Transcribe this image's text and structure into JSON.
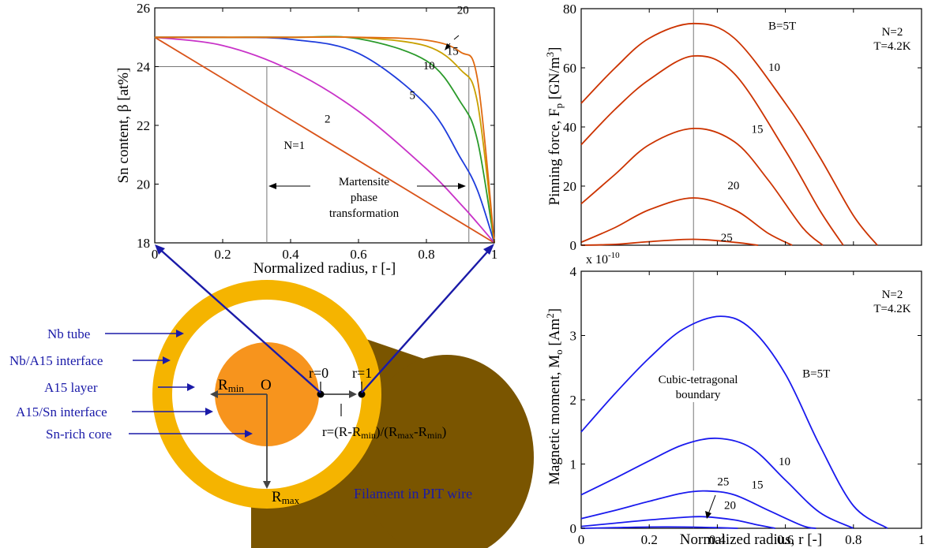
{
  "chart_data": [
    {
      "type": "line",
      "xlabel": "Normalized radius, r [-]",
      "ylabel": "Sn content, β [at%]",
      "xlim": [
        0,
        1
      ],
      "ylim": [
        18,
        26
      ],
      "xticks": [
        "0",
        "0.2",
        "0.4",
        "0.6",
        "0.8",
        "1"
      ],
      "yticks": [
        "18",
        "20",
        "22",
        "24",
        "26"
      ],
      "reference_lines": {
        "h": 24,
        "v": [
          0.33,
          0.925
        ]
      },
      "annotation": {
        "line1": "Martensite",
        "line2": "phase",
        "line3": "transformation"
      },
      "series": [
        {
          "name": "N=1",
          "color": "#d95319",
          "x": [
            0,
            0.2,
            0.4,
            0.6,
            0.8,
            1
          ],
          "y": [
            25,
            23.6,
            22.2,
            20.8,
            19.4,
            18
          ]
        },
        {
          "name": "2",
          "color": "#c832c8",
          "x": [
            0,
            0.2,
            0.4,
            0.6,
            0.8,
            0.9,
            0.95,
            1
          ],
          "y": [
            25,
            24.72,
            23.88,
            22.48,
            20.52,
            19.33,
            18.68,
            18
          ]
        },
        {
          "name": "5",
          "color": "#1e3cdc",
          "x": [
            0,
            0.2,
            0.4,
            0.6,
            0.8,
            0.9,
            0.95,
            1
          ],
          "y": [
            25,
            24.998,
            24.93,
            24.45,
            22.7,
            20.9,
            19.8,
            18
          ]
        },
        {
          "name": "10",
          "color": "#2a9a2a",
          "x": [
            0,
            0.2,
            0.4,
            0.6,
            0.8,
            0.9,
            0.95,
            1
          ],
          "y": [
            25,
            25,
            25,
            24.95,
            24.2,
            22.8,
            21.5,
            18
          ]
        },
        {
          "name": "15",
          "color": "#c8a000",
          "x": [
            0,
            0.2,
            0.4,
            0.6,
            0.8,
            0.9,
            0.95,
            1
          ],
          "y": [
            25,
            25,
            25,
            24.99,
            24.7,
            23.9,
            22.8,
            18
          ]
        },
        {
          "name": "20",
          "color": "#e06a10",
          "x": [
            0,
            0.2,
            0.4,
            0.6,
            0.8,
            0.9,
            0.95,
            1
          ],
          "y": [
            25,
            25,
            25,
            25,
            24.9,
            24.5,
            23.6,
            18
          ]
        }
      ],
      "labels": [
        "N=1",
        "2",
        "5",
        "10",
        "15",
        "20"
      ]
    },
    {
      "type": "line",
      "xlabel": "",
      "ylabel": "Pinning force, F_p [GN/m³]",
      "xlim": [
        0,
        1
      ],
      "ylim": [
        0,
        80
      ],
      "xticks": [],
      "yticks": [
        "0",
        "20",
        "40",
        "60",
        "80"
      ],
      "legend_text": [
        "N=2",
        "T=4.2K"
      ],
      "reference_lines": {
        "v": [
          0.33
        ]
      },
      "series": [
        {
          "name": "B=5T",
          "color": "#cc3300",
          "x": [
            0,
            0.1,
            0.2,
            0.33,
            0.45,
            0.6,
            0.7,
            0.8,
            0.87
          ],
          "y": [
            48,
            60,
            70,
            75,
            70,
            48,
            30,
            10,
            0
          ]
        },
        {
          "name": "10",
          "color": "#cc3300",
          "x": [
            0,
            0.1,
            0.2,
            0.33,
            0.45,
            0.6,
            0.7,
            0.77
          ],
          "y": [
            34,
            46,
            56,
            64,
            58,
            32,
            12,
            0
          ]
        },
        {
          "name": "15",
          "color": "#cc3300",
          "x": [
            0,
            0.1,
            0.2,
            0.33,
            0.45,
            0.55,
            0.65,
            0.71
          ],
          "y": [
            14,
            24,
            34,
            39.5,
            35,
            22,
            6,
            0
          ]
        },
        {
          "name": "20",
          "color": "#cc3300",
          "x": [
            0,
            0.1,
            0.2,
            0.33,
            0.45,
            0.55,
            0.62
          ],
          "y": [
            1,
            6,
            12,
            16,
            12,
            4,
            0
          ]
        },
        {
          "name": "25",
          "color": "#cc3300",
          "x": [
            0,
            0.1,
            0.2,
            0.33,
            0.45,
            0.52
          ],
          "y": [
            0,
            0.3,
            1.2,
            2,
            1,
            0
          ]
        }
      ],
      "labels": [
        "B=5T",
        "10",
        "15",
        "20",
        "25"
      ]
    },
    {
      "type": "line",
      "xlabel": "Normalized radius, r [-]",
      "ylabel": "Magnetic moment, M_o [Am²]",
      "y_multiplier": "x 10^-10",
      "xlim": [
        0,
        1
      ],
      "ylim": [
        0,
        4
      ],
      "xticks": [
        "0",
        "0.2",
        "0.4",
        "0.6",
        "0.8",
        "1"
      ],
      "yticks": [
        "0",
        "1",
        "2",
        "3",
        "4"
      ],
      "legend_text": [
        "N=2",
        "T=4.2K"
      ],
      "reference_lines": {
        "v": [
          0.33
        ]
      },
      "annotation": {
        "line1": "Cubic-tetragonal",
        "line2": "boundary"
      },
      "series": [
        {
          "name": "B=5T",
          "color": "#1a1aee",
          "x": [
            0,
            0.1,
            0.2,
            0.3,
            0.41,
            0.5,
            0.6,
            0.7,
            0.8,
            0.9
          ],
          "y": [
            1.5,
            2.1,
            2.65,
            3.1,
            3.3,
            3.1,
            2.4,
            1.3,
            0.35,
            0
          ]
        },
        {
          "name": "10",
          "color": "#1a1aee",
          "x": [
            0,
            0.1,
            0.2,
            0.3,
            0.4,
            0.5,
            0.6,
            0.7,
            0.8
          ],
          "y": [
            0.52,
            0.78,
            1.05,
            1.3,
            1.4,
            1.25,
            0.75,
            0.25,
            0
          ]
        },
        {
          "name": "15",
          "color": "#1a1aee",
          "x": [
            0,
            0.1,
            0.2,
            0.3,
            0.37,
            0.45,
            0.55,
            0.65,
            0.69
          ],
          "y": [
            0.15,
            0.28,
            0.42,
            0.55,
            0.58,
            0.52,
            0.28,
            0.04,
            0
          ]
        },
        {
          "name": "20",
          "color": "#1a1aee",
          "x": [
            0,
            0.1,
            0.2,
            0.3,
            0.36,
            0.45,
            0.52,
            0.57
          ],
          "y": [
            0.03,
            0.08,
            0.13,
            0.17,
            0.18,
            0.13,
            0.05,
            0
          ]
        },
        {
          "name": "25",
          "color": "#1a1aee",
          "x": [
            0,
            0.1,
            0.2,
            0.3,
            0.4,
            0.46
          ],
          "y": [
            0,
            0.01,
            0.02,
            0.02,
            0.01,
            0
          ]
        }
      ],
      "labels": [
        "B=5T",
        "10",
        "15",
        "20",
        "25"
      ]
    }
  ],
  "diagram": {
    "labels": {
      "nb_tube": "Nb tube",
      "nb_a15_interface": "Nb/A15 interface",
      "a15_layer": "A15 layer",
      "a15_sn_interface": "A15/Sn interface",
      "sn_rich_core": "Sn-rich core",
      "filament": "Filament in PIT wire",
      "origin": "O",
      "rmin": "R",
      "rmin_sub": "min",
      "rmax": "R",
      "rmax_sub": "max",
      "r0": "r=0",
      "r1": "r=1",
      "formula_a": "r=(R-R",
      "formula_sub1": "min",
      "formula_b": ")/(R",
      "formula_sub2": "max",
      "formula_c": "-R",
      "formula_sub3": "min",
      "formula_d": ")"
    },
    "colors": {
      "tube": "#f5b400",
      "filament": "#7a5500",
      "core": "#f7941d",
      "annotation": "#1a1aa8"
    }
  }
}
